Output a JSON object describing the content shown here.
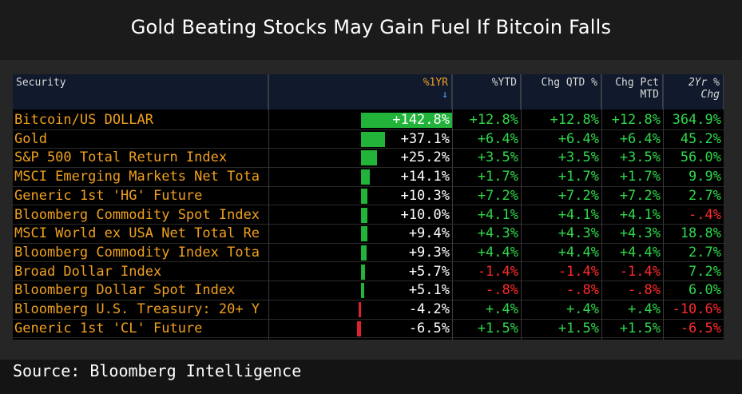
{
  "title": "Gold Beating Stocks May Gain Fuel If Bitcoin Falls",
  "source": "Source: Bloomberg Intelligence",
  "colors": {
    "positive": "#2fd84a",
    "negative": "#ff2b2b",
    "neutral": "#ffffff",
    "security": "#f0a020",
    "bar_pos": "#22b33a",
    "bar_neg": "#e0202a"
  },
  "chart_data": {
    "type": "table",
    "columns": [
      "Security",
      "%1YR",
      "%YTD",
      "Chg QTD %",
      "Chg Pct MTD",
      "2Yr % Chg"
    ],
    "column_labels": {
      "security": "Security",
      "one_yr": "%1YR",
      "ytd": "%YTD",
      "qtd": "Chg QTD %",
      "mtd_line1": "Chg Pct",
      "mtd_line2": "MTD",
      "two_yr": "2Yr % Chg",
      "sort_arrow": "↓"
    },
    "rows": [
      {
        "security": "Bitcoin/US DOLLAR",
        "one_yr": "+142.8%",
        "one_yr_value": 142.8,
        "ytd": "+12.8%",
        "qtd": "+12.8%",
        "mtd": "+12.8%",
        "two_yr": "364.9%"
      },
      {
        "security": "Gold",
        "one_yr": "+37.1%",
        "one_yr_value": 37.1,
        "ytd": "+6.4%",
        "qtd": "+6.4%",
        "mtd": "+6.4%",
        "two_yr": "45.2%"
      },
      {
        "security": "S&P 500 Total Return Index",
        "one_yr": "+25.2%",
        "one_yr_value": 25.2,
        "ytd": "+3.5%",
        "qtd": "+3.5%",
        "mtd": "+3.5%",
        "two_yr": "56.0%"
      },
      {
        "security": "MSCI Emerging Markets Net Tota",
        "one_yr": "+14.1%",
        "one_yr_value": 14.1,
        "ytd": "+1.7%",
        "qtd": "+1.7%",
        "mtd": "+1.7%",
        "two_yr": "9.9%"
      },
      {
        "security": "Generic 1st 'HG' Future",
        "one_yr": "+10.3%",
        "one_yr_value": 10.3,
        "ytd": "+7.2%",
        "qtd": "+7.2%",
        "mtd": "+7.2%",
        "two_yr": "2.7%"
      },
      {
        "security": "Bloomberg Commodity Spot Index",
        "one_yr": "+10.0%",
        "one_yr_value": 10.0,
        "ytd": "+4.1%",
        "qtd": "+4.1%",
        "mtd": "+4.1%",
        "two_yr": "-.4%"
      },
      {
        "security": "MSCI World ex USA Net Total Re",
        "one_yr": "+9.4%",
        "one_yr_value": 9.4,
        "ytd": "+4.3%",
        "qtd": "+4.3%",
        "mtd": "+4.3%",
        "two_yr": "18.8%"
      },
      {
        "security": "Bloomberg Commodity Index Tota",
        "one_yr": "+9.3%",
        "one_yr_value": 9.3,
        "ytd": "+4.4%",
        "qtd": "+4.4%",
        "mtd": "+4.4%",
        "two_yr": "2.7%"
      },
      {
        "security": "Broad Dollar Index",
        "one_yr": "+5.7%",
        "one_yr_value": 5.7,
        "ytd": "-1.4%",
        "qtd": "-1.4%",
        "mtd": "-1.4%",
        "two_yr": "7.2%"
      },
      {
        "security": "Bloomberg Dollar Spot Index",
        "one_yr": "+5.1%",
        "one_yr_value": 5.1,
        "ytd": "-.8%",
        "qtd": "-.8%",
        "mtd": "-.8%",
        "two_yr": "6.0%"
      },
      {
        "security": "Bloomberg U.S. Treasury: 20+ Y",
        "one_yr": "-4.2%",
        "one_yr_value": -4.2,
        "ytd": "+.4%",
        "qtd": "+.4%",
        "mtd": "+.4%",
        "two_yr": "-10.6%"
      },
      {
        "security": "Generic 1st 'CL' Future",
        "one_yr": "-6.5%",
        "one_yr_value": -6.5,
        "ytd": "+1.5%",
        "qtd": "+1.5%",
        "mtd": "+1.5%",
        "two_yr": "-6.5%"
      }
    ]
  }
}
